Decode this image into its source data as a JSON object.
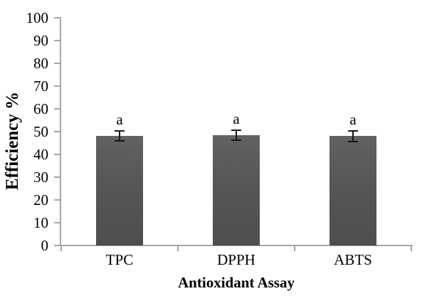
{
  "chart_data": {
    "type": "bar",
    "title": "",
    "xlabel": "Antioxidant Assay",
    "ylabel": "Efficiency %",
    "categories": [
      "TPC",
      "DPPH",
      "ABTS"
    ],
    "values": [
      48.1,
      48.4,
      48.0
    ],
    "errors": [
      2.3,
      2.2,
      2.4
    ],
    "sig_letters": [
      "a",
      "a",
      "a"
    ],
    "ylim": [
      0,
      100
    ],
    "ytick_step": 10,
    "yticks": [
      0,
      10,
      20,
      30,
      40,
      50,
      60,
      70,
      80,
      90,
      100
    ],
    "grid": false,
    "legend": "none",
    "colors": {
      "bar_fill": "#565658",
      "axis_line": "#a6a6a6",
      "error_bar": "#151515",
      "text": "#000000"
    }
  }
}
